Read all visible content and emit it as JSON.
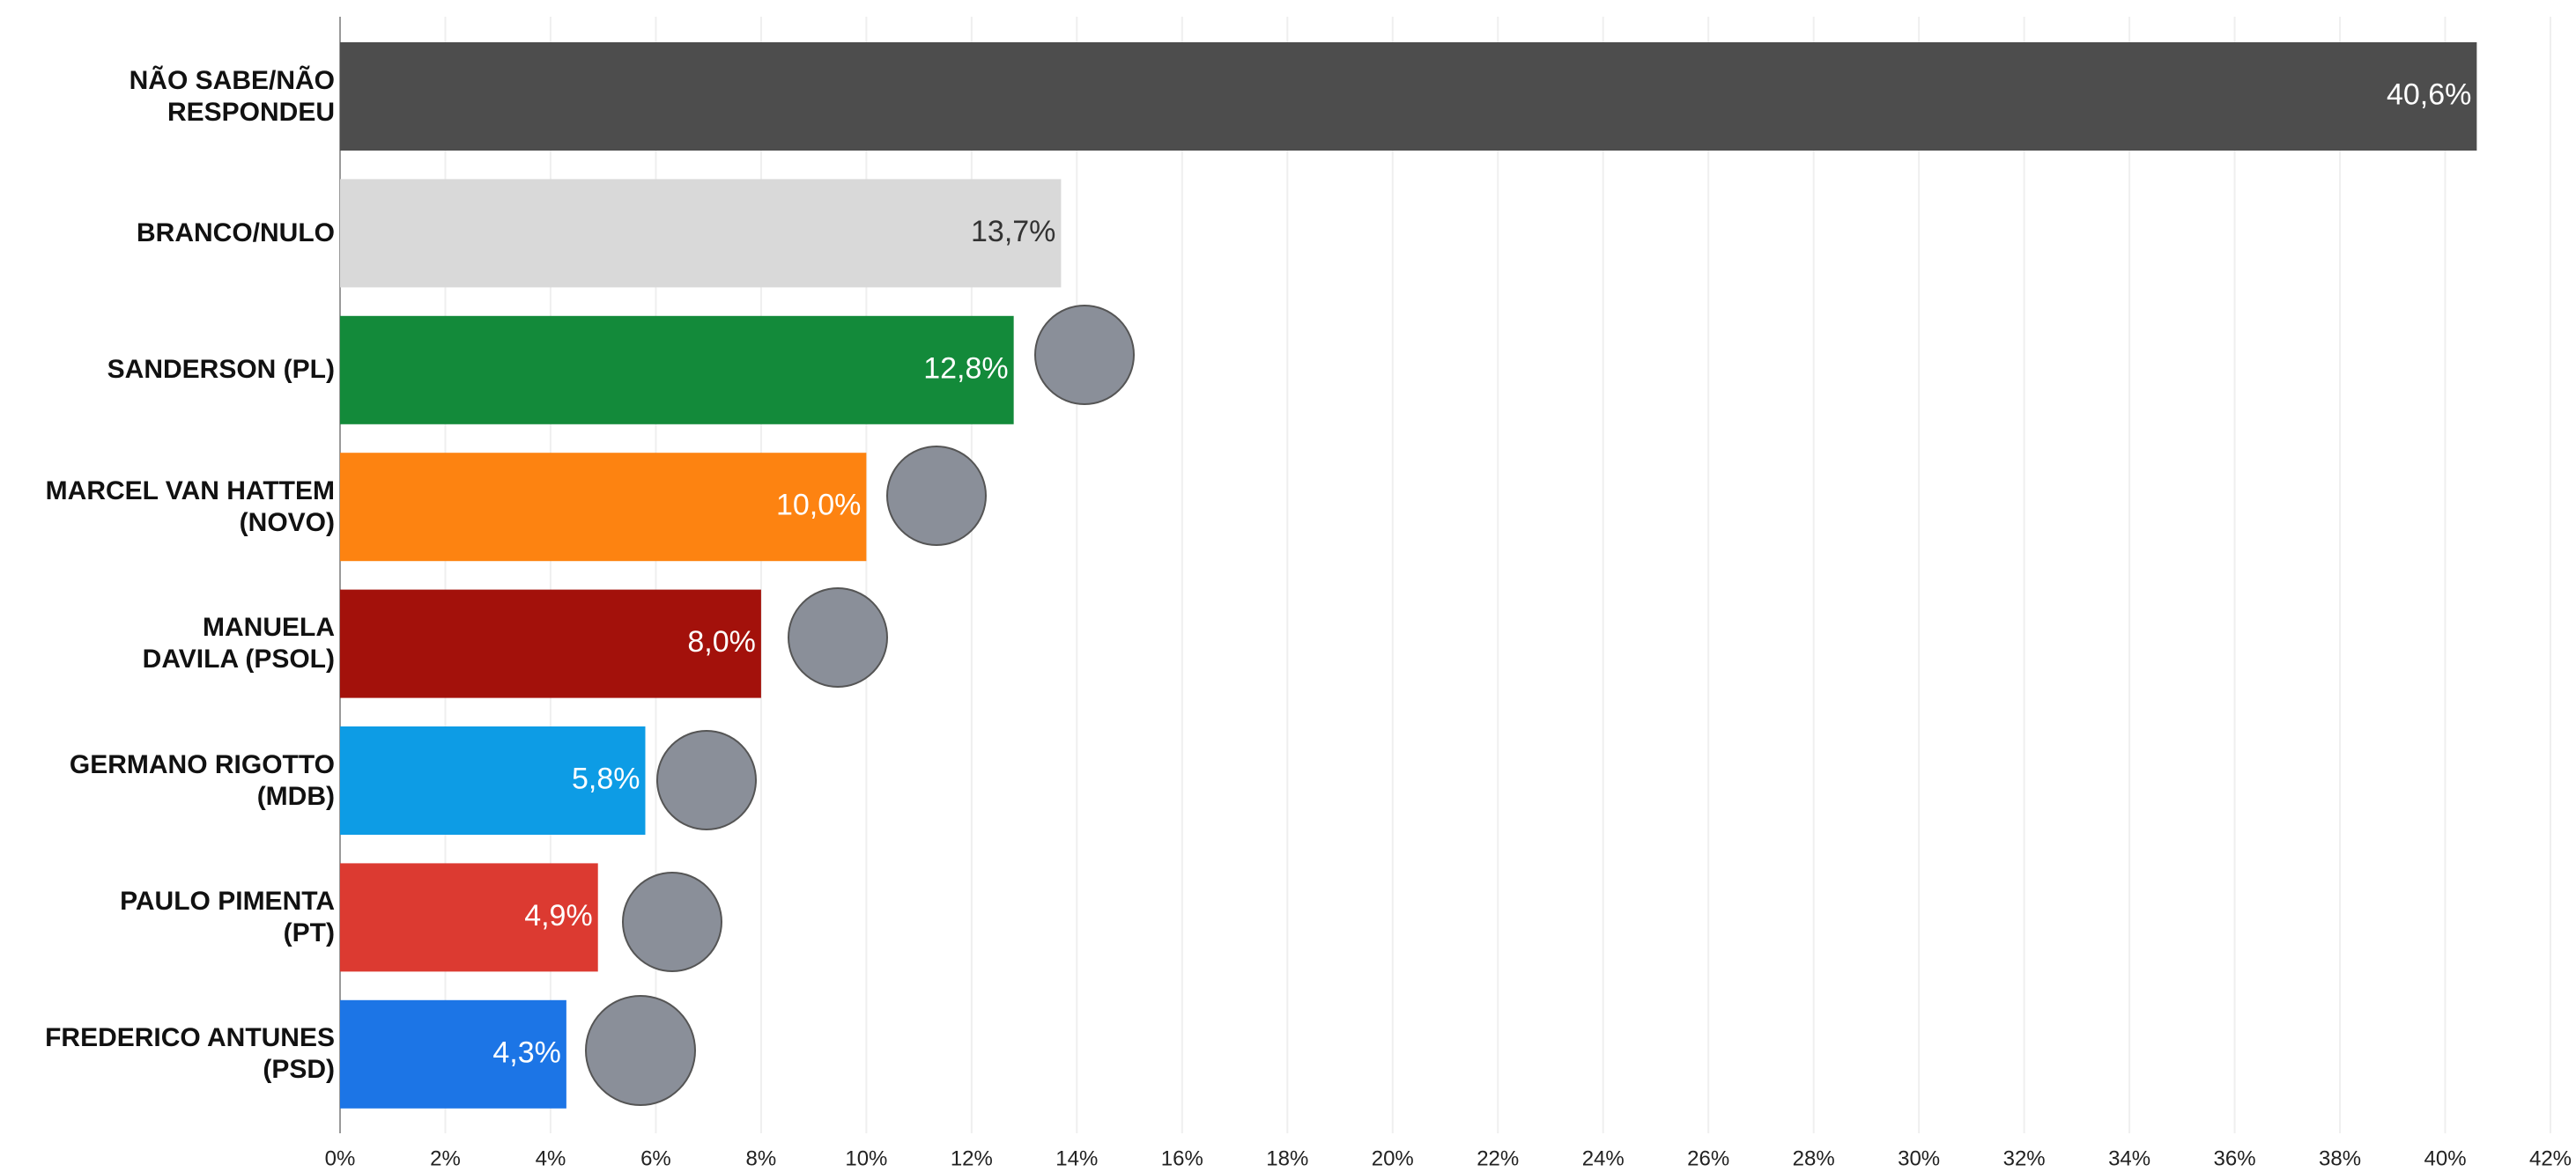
{
  "chart_data": {
    "type": "bar",
    "orientation": "horizontal",
    "categories": [
      "NÃO SABE/NÃO\nRESPONDEU",
      "BRANCO/NULO",
      "SANDERSON (PL)",
      "MARCEL VAN HATTEM\n(NOVO)",
      "MANUELA\nDAVILA (PSOL)",
      "GERMANO RIGOTTO\n(MDB)",
      "PAULO PIMENTA\n(PT)",
      "FREDERICO ANTUNES\n(PSD)"
    ],
    "values": [
      40.6,
      13.7,
      12.8,
      10.0,
      8.0,
      5.8,
      4.9,
      4.3
    ],
    "value_labels": [
      "40,6%",
      "13,7%",
      "12,8%",
      "10,0%",
      "8,0%",
      "5,8%",
      "4,9%",
      "4,3%"
    ],
    "colors": [
      "#4d4d4d",
      "#d9d9d9",
      "#138a3a",
      "#fd8311",
      "#a3110b",
      "#0d9ce5",
      "#dc3a31",
      "#1c75e6"
    ],
    "xlim": [
      0,
      42
    ],
    "xticks": [
      {
        "value": 0,
        "label": "0%"
      },
      {
        "value": 2,
        "label": "2%"
      },
      {
        "value": 4,
        "label": "4%"
      },
      {
        "value": 6,
        "label": "6%"
      },
      {
        "value": 8,
        "label": "8%"
      },
      {
        "value": 10,
        "label": "10%"
      },
      {
        "value": 12,
        "label": "12%"
      },
      {
        "value": 14,
        "label": "14%"
      },
      {
        "value": 16,
        "label": "16%"
      },
      {
        "value": 18,
        "label": "18%"
      },
      {
        "value": 20,
        "label": "20%"
      },
      {
        "value": 22,
        "label": "22%"
      },
      {
        "value": 24,
        "label": "24%"
      },
      {
        "value": 26,
        "label": "26%"
      },
      {
        "value": 28,
        "label": "28%"
      },
      {
        "value": 30,
        "label": "30%"
      },
      {
        "value": 32,
        "label": "32%"
      },
      {
        "value": 34,
        "label": "34%"
      },
      {
        "value": 36,
        "label": "36%"
      },
      {
        "value": 38,
        "label": "38%"
      },
      {
        "value": 40,
        "label": "40%"
      },
      {
        "value": 42,
        "label": "42%"
      }
    ],
    "grid": true
  }
}
